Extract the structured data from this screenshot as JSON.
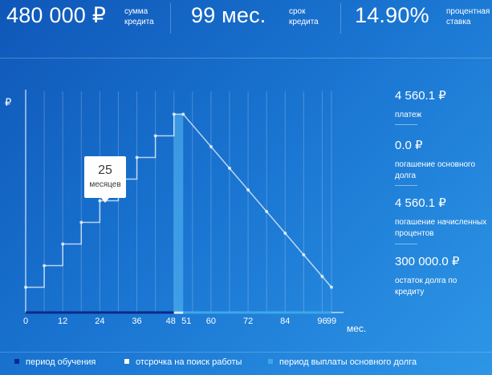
{
  "stats": [
    {
      "value": "480 000 ₽",
      "label": "сумма\nкредита"
    },
    {
      "value": "99 мес.",
      "label": "срок\nкредита"
    },
    {
      "value": "14.90%",
      "label": "процентная\nставка"
    }
  ],
  "info": [
    {
      "value": "4 560.1 ₽",
      "label": "платеж"
    },
    {
      "value": "0.0 ₽",
      "label": "погашение основного\nдолга"
    },
    {
      "value": "4 560.1 ₽",
      "label": "погашение начисленных\nпроцентов"
    },
    {
      "value": "300 000.0 ₽",
      "label": "остаток долга по\nкредиту"
    }
  ],
  "tooltip": {
    "months": "25",
    "unit": "месяцев"
  },
  "legend": [
    {
      "label": "период обучения",
      "color": "#0a2a8a"
    },
    {
      "label": "отсрочка на поиск работы",
      "color": "#ffffff"
    },
    {
      "label": "период выплаты основного долга",
      "color": "#3ea7ec"
    }
  ],
  "chart_data": {
    "type": "line",
    "ylabel": "₽",
    "xlabel": "мес.",
    "x_ticks": [
      "0",
      "12",
      "24",
      "36",
      "48",
      "51",
      "60",
      "72",
      "84",
      "96",
      "99"
    ],
    "x_tick_values": [
      0,
      12,
      24,
      36,
      48,
      51,
      60,
      72,
      84,
      96,
      99
    ],
    "xlim": [
      0,
      99
    ],
    "periods": [
      {
        "name": "период обучения",
        "from": 0,
        "to": 48
      },
      {
        "name": "отсрочка на поиск работы",
        "from": 48,
        "to": 51
      },
      {
        "name": "период выплаты основного долга",
        "from": 51,
        "to": 99
      }
    ],
    "series": [
      {
        "x": [
          0,
          6,
          12,
          18,
          24,
          30,
          36,
          42,
          48,
          51,
          60,
          66,
          72,
          78,
          84,
          90,
          96,
          99
        ],
        "y": [
          7,
          13,
          19,
          25,
          31,
          37,
          43,
          49,
          55,
          55,
          46,
          40,
          34,
          28,
          22,
          16,
          10,
          7
        ],
        "step": true
      }
    ],
    "highlight": {
      "x": 25,
      "y": 37
    }
  }
}
